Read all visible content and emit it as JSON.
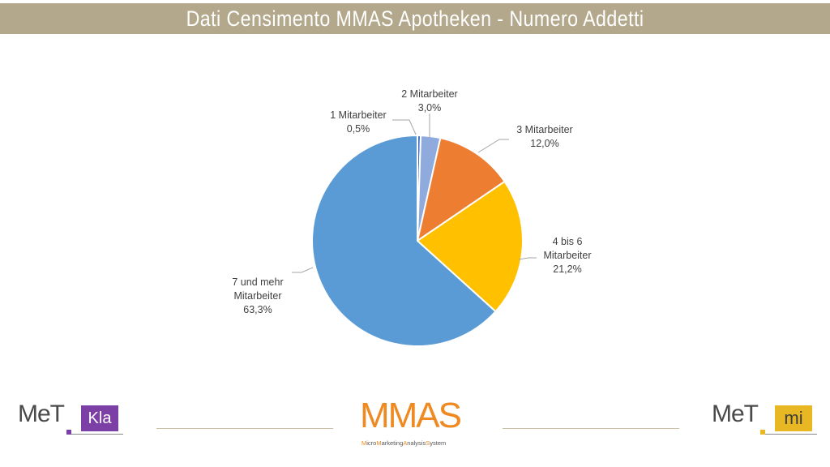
{
  "header": {
    "title": "Dati Censimento MMAS Apotheken - Numero Addetti"
  },
  "chart_data": {
    "type": "pie",
    "title": "",
    "slices": [
      {
        "label": [
          "1 Mitarbeiter"
        ],
        "value": 0.5,
        "value_text": "0,5%",
        "color": "#4472c4"
      },
      {
        "label": [
          "2 Mitarbeiter"
        ],
        "value": 3.0,
        "value_text": "3,0%",
        "color": "#8faadc"
      },
      {
        "label": [
          "3 Mitarbeiter"
        ],
        "value": 12.0,
        "value_text": "12,0%",
        "color": "#ed7d31"
      },
      {
        "label": [
          "4 bis 6",
          "Mitarbeiter"
        ],
        "value": 21.2,
        "value_text": "21,2%",
        "color": "#ffc000"
      },
      {
        "label": [
          "7 und mehr",
          "Mitarbeiter"
        ],
        "value": 63.3,
        "value_text": "63,3%",
        "color": "#5b9bd5"
      }
    ],
    "start_angle": "12 o'clock, clockwise"
  },
  "footer": {
    "left_logo": {
      "met": "MeT",
      "badge": "Kla",
      "badge_color": "#7b3fa6"
    },
    "center_logo": {
      "main": "MMAS",
      "sub": [
        {
          "cap": "M",
          "rest": "icro"
        },
        {
          "cap": "M",
          "rest": "arketing"
        },
        {
          "cap": "A",
          "rest": "nalysis"
        },
        {
          "cap": "S",
          "rest": "ystem"
        }
      ],
      "color": "#ef8a23"
    },
    "right_logo": {
      "met": "MeT",
      "badge": "mi",
      "badge_color": "#e8b824"
    }
  }
}
